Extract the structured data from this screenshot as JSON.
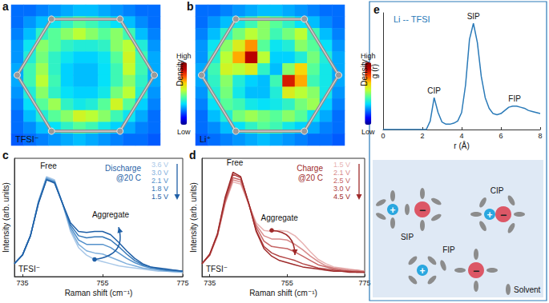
{
  "chart_data": [
    {
      "type": "heatmap",
      "title": "a",
      "annotations": [
        "TFSI⁻"
      ],
      "tick_labels": false,
      "cells": [
        [
          0.22,
          0.22,
          0.24,
          0.26,
          0.28,
          0.3,
          0.3,
          0.28,
          0.26,
          0.24,
          0.22,
          0.22
        ],
        [
          0.22,
          0.26,
          0.3,
          0.35,
          0.4,
          0.45,
          0.42,
          0.38,
          0.34,
          0.3,
          0.25,
          0.22
        ],
        [
          0.24,
          0.3,
          0.4,
          0.45,
          0.5,
          0.55,
          0.5,
          0.45,
          0.5,
          0.42,
          0.3,
          0.24
        ],
        [
          0.26,
          0.35,
          0.5,
          0.45,
          0.4,
          0.38,
          0.38,
          0.4,
          0.5,
          0.55,
          0.38,
          0.26
        ],
        [
          0.26,
          0.38,
          0.48,
          0.4,
          0.35,
          0.32,
          0.32,
          0.35,
          0.45,
          0.58,
          0.42,
          0.28
        ],
        [
          0.28,
          0.42,
          0.52,
          0.4,
          0.32,
          0.3,
          0.3,
          0.34,
          0.42,
          0.56,
          0.42,
          0.28
        ],
        [
          0.28,
          0.42,
          0.55,
          0.42,
          0.32,
          0.3,
          0.3,
          0.34,
          0.42,
          0.5,
          0.4,
          0.28
        ],
        [
          0.26,
          0.38,
          0.5,
          0.4,
          0.34,
          0.32,
          0.32,
          0.36,
          0.48,
          0.55,
          0.38,
          0.26
        ],
        [
          0.24,
          0.34,
          0.45,
          0.52,
          0.4,
          0.36,
          0.38,
          0.45,
          0.58,
          0.45,
          0.32,
          0.24
        ],
        [
          0.22,
          0.3,
          0.38,
          0.45,
          0.5,
          0.58,
          0.55,
          0.5,
          0.42,
          0.35,
          0.28,
          0.22
        ],
        [
          0.22,
          0.25,
          0.3,
          0.34,
          0.4,
          0.45,
          0.42,
          0.36,
          0.32,
          0.28,
          0.24,
          0.22
        ],
        [
          0.2,
          0.22,
          0.24,
          0.26,
          0.28,
          0.3,
          0.28,
          0.26,
          0.24,
          0.22,
          0.22,
          0.2
        ]
      ],
      "colorbar": {
        "title": "Density",
        "range": [
          0,
          1
        ],
        "ticks": [
          {
            "value": 1,
            "label": "High"
          },
          {
            "value": 0,
            "label": "Low"
          }
        ]
      }
    },
    {
      "type": "heatmap",
      "title": "b",
      "annotations": [
        "Li⁺"
      ],
      "tick_labels": false,
      "cells": [
        [
          0.22,
          0.22,
          0.24,
          0.26,
          0.28,
          0.3,
          0.3,
          0.28,
          0.26,
          0.24,
          0.22,
          0.22
        ],
        [
          0.22,
          0.26,
          0.3,
          0.36,
          0.42,
          0.5,
          0.45,
          0.4,
          0.34,
          0.3,
          0.25,
          0.22
        ],
        [
          0.24,
          0.3,
          0.4,
          0.48,
          0.55,
          0.5,
          0.42,
          0.48,
          0.55,
          0.42,
          0.3,
          0.24
        ],
        [
          0.26,
          0.35,
          0.5,
          0.6,
          0.72,
          0.45,
          0.35,
          0.38,
          0.5,
          0.45,
          0.34,
          0.26
        ],
        [
          0.26,
          0.38,
          0.55,
          0.7,
          0.9,
          0.55,
          0.32,
          0.32,
          0.38,
          0.48,
          0.38,
          0.28
        ],
        [
          0.28,
          0.42,
          0.58,
          0.55,
          0.6,
          0.4,
          0.3,
          0.5,
          0.65,
          0.45,
          0.36,
          0.28
        ],
        [
          0.28,
          0.4,
          0.5,
          0.38,
          0.32,
          0.3,
          0.42,
          0.85,
          0.7,
          0.42,
          0.36,
          0.28
        ],
        [
          0.26,
          0.38,
          0.48,
          0.36,
          0.3,
          0.3,
          0.38,
          0.6,
          0.55,
          0.5,
          0.36,
          0.26
        ],
        [
          0.24,
          0.34,
          0.45,
          0.42,
          0.36,
          0.34,
          0.36,
          0.4,
          0.48,
          0.52,
          0.32,
          0.24
        ],
        [
          0.22,
          0.3,
          0.38,
          0.48,
          0.52,
          0.48,
          0.45,
          0.5,
          0.45,
          0.35,
          0.28,
          0.22
        ],
        [
          0.22,
          0.25,
          0.3,
          0.34,
          0.4,
          0.45,
          0.42,
          0.36,
          0.32,
          0.28,
          0.24,
          0.22
        ],
        [
          0.2,
          0.22,
          0.24,
          0.26,
          0.28,
          0.3,
          0.28,
          0.26,
          0.24,
          0.22,
          0.22,
          0.2
        ]
      ],
      "colorbar": {
        "title": "Density",
        "range": [
          0,
          1
        ],
        "ticks": [
          {
            "value": 1,
            "label": "High"
          },
          {
            "value": 0,
            "label": "Low"
          }
        ]
      }
    },
    {
      "type": "line",
      "title": "c",
      "x_label": "Raman shift (cm⁻¹)",
      "y_label": "Intensity (arb. units)",
      "annotations": [
        "Free",
        "Aggregate",
        "Discharge\n@20 C",
        "TFSI⁻"
      ],
      "legend": "top-right",
      "tick_labels": "x",
      "grid": false,
      "xlim": [
        733,
        775
      ],
      "xticks": [
        735,
        755,
        775
      ],
      "ylim": [
        0,
        1.1
      ],
      "yticks": [],
      "x": [
        733,
        735,
        737,
        739,
        741,
        743,
        745,
        747,
        749,
        751,
        753,
        755,
        757,
        759,
        761,
        763,
        765,
        767,
        769,
        771,
        773,
        775
      ],
      "series": [
        {
          "name": "3.6 V",
          "color": "#a9c8e8",
          "values": [
            0.12,
            0.2,
            0.38,
            0.7,
            0.93,
            0.9,
            0.68,
            0.42,
            0.27,
            0.2,
            0.16,
            0.14,
            0.12,
            0.1,
            0.09,
            0.08,
            0.07,
            0.06,
            0.05,
            0.05,
            0.04,
            0.04
          ]
        },
        {
          "name": "3.0 V",
          "color": "#7fafdc",
          "values": [
            0.12,
            0.2,
            0.38,
            0.7,
            0.92,
            0.89,
            0.68,
            0.44,
            0.3,
            0.24,
            0.22,
            0.21,
            0.18,
            0.15,
            0.12,
            0.1,
            0.08,
            0.07,
            0.06,
            0.05,
            0.05,
            0.04
          ]
        },
        {
          "name": "2.1 V",
          "color": "#5592cb",
          "values": [
            0.12,
            0.2,
            0.38,
            0.69,
            0.91,
            0.88,
            0.68,
            0.46,
            0.34,
            0.3,
            0.3,
            0.3,
            0.27,
            0.22,
            0.17,
            0.13,
            0.1,
            0.08,
            0.07,
            0.06,
            0.05,
            0.05
          ]
        },
        {
          "name": "1.8 V",
          "color": "#3477b8",
          "values": [
            0.12,
            0.2,
            0.38,
            0.69,
            0.9,
            0.88,
            0.68,
            0.48,
            0.38,
            0.36,
            0.37,
            0.37,
            0.34,
            0.28,
            0.21,
            0.15,
            0.11,
            0.09,
            0.07,
            0.06,
            0.06,
            0.05
          ]
        },
        {
          "name": "1.5 V",
          "color": "#1f5fa6",
          "values": [
            0.12,
            0.2,
            0.38,
            0.68,
            0.9,
            0.87,
            0.68,
            0.5,
            0.42,
            0.41,
            0.42,
            0.42,
            0.39,
            0.32,
            0.24,
            0.17,
            0.12,
            0.09,
            0.08,
            0.07,
            0.06,
            0.05
          ]
        }
      ]
    },
    {
      "type": "line",
      "title": "d",
      "x_label": "Raman shift (cm⁻¹)",
      "y_label": "Intensity (arb. units)",
      "annotations": [
        "Free",
        "Aggregate",
        "Charge\n@20 C",
        "TFSI⁻"
      ],
      "legend": "top-right",
      "tick_labels": "x",
      "grid": false,
      "xlim": [
        733,
        775
      ],
      "xticks": [
        735,
        755,
        775
      ],
      "ylim": [
        0,
        1.1
      ],
      "yticks": [],
      "x": [
        733,
        735,
        737,
        739,
        741,
        743,
        745,
        747,
        749,
        751,
        753,
        755,
        757,
        759,
        761,
        763,
        765,
        767,
        769,
        771,
        773,
        775
      ],
      "series": [
        {
          "name": "1.5 V",
          "color": "#e8b3b3",
          "values": [
            0.12,
            0.2,
            0.38,
            0.68,
            0.88,
            0.86,
            0.68,
            0.5,
            0.43,
            0.42,
            0.43,
            0.42,
            0.38,
            0.31,
            0.23,
            0.16,
            0.12,
            0.09,
            0.08,
            0.07,
            0.06,
            0.05
          ]
        },
        {
          "name": "2.1 V",
          "color": "#d88b8b",
          "values": [
            0.12,
            0.2,
            0.38,
            0.69,
            0.9,
            0.88,
            0.68,
            0.48,
            0.38,
            0.35,
            0.35,
            0.34,
            0.3,
            0.25,
            0.19,
            0.14,
            0.1,
            0.08,
            0.07,
            0.06,
            0.06,
            0.05
          ]
        },
        {
          "name": "2.5 V",
          "color": "#c66565",
          "values": [
            0.12,
            0.2,
            0.39,
            0.7,
            0.92,
            0.9,
            0.69,
            0.46,
            0.33,
            0.28,
            0.27,
            0.26,
            0.23,
            0.19,
            0.15,
            0.11,
            0.09,
            0.07,
            0.06,
            0.05,
            0.05,
            0.04
          ]
        },
        {
          "name": "3.0 V",
          "color": "#b24444",
          "values": [
            0.12,
            0.2,
            0.39,
            0.72,
            0.95,
            0.92,
            0.69,
            0.43,
            0.28,
            0.22,
            0.19,
            0.17,
            0.15,
            0.12,
            0.1,
            0.08,
            0.07,
            0.06,
            0.05,
            0.05,
            0.04,
            0.04
          ]
        },
        {
          "name": "4.5 V",
          "color": "#9e2a2a",
          "values": [
            0.12,
            0.21,
            0.4,
            0.74,
            0.97,
            0.93,
            0.69,
            0.42,
            0.26,
            0.19,
            0.15,
            0.13,
            0.11,
            0.09,
            0.08,
            0.07,
            0.06,
            0.05,
            0.05,
            0.04,
            0.04,
            0.04
          ]
        }
      ]
    },
    {
      "type": "line",
      "title": "e",
      "x_label": "r (Å)",
      "y_label": "g (r)",
      "annotations": [
        "CIP",
        "SIP",
        "FIP"
      ],
      "legend": "top-left",
      "tick_labels": "x",
      "grid": false,
      "xlim": [
        0,
        8
      ],
      "xticks": [
        0,
        2,
        4,
        6,
        8
      ],
      "ylim": [
        0,
        1.1
      ],
      "yticks": [],
      "x": [
        0,
        0.2,
        0.4,
        0.6,
        0.8,
        1,
        1.2,
        1.4,
        1.6,
        1.8,
        2,
        2.2,
        2.4,
        2.6,
        2.8,
        3,
        3.2,
        3.4,
        3.6,
        3.8,
        4,
        4.2,
        4.4,
        4.6,
        4.8,
        5,
        5.2,
        5.4,
        5.6,
        5.8,
        6,
        6.2,
        6.4,
        6.6,
        6.8,
        7,
        7.2,
        7.4,
        7.6,
        7.8,
        8
      ],
      "series": [
        {
          "name": "Li -- TFSI",
          "color": "#2a7ab8",
          "values": [
            0,
            0,
            0,
            0,
            0,
            0,
            0,
            0,
            0,
            0,
            0,
            0,
            0.08,
            0.3,
            0.16,
            0.07,
            0.05,
            0.05,
            0.06,
            0.08,
            0.16,
            0.42,
            0.85,
            1.0,
            0.82,
            0.5,
            0.3,
            0.2,
            0.15,
            0.14,
            0.15,
            0.18,
            0.21,
            0.22,
            0.22,
            0.21,
            0.2,
            0.18,
            0.17,
            0.16,
            0.15
          ]
        }
      ]
    }
  ],
  "diagram": {
    "pairs": [
      "SIP",
      "CIP",
      "FIP"
    ],
    "cation": "+",
    "anion": "−",
    "solvent": "Solvent"
  }
}
